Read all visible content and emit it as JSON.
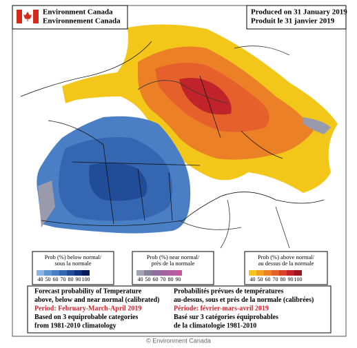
{
  "header": {
    "org_en": "Environment Canada",
    "org_fr": "Environnement Canada",
    "produced_en": "Produced on 31 January 2019",
    "produced_fr": "Produit le 31 janvier 2019"
  },
  "legends": [
    {
      "title": [
        "Prob (%) below normal/",
        "sous la normale"
      ],
      "swatches": [
        {
          "value": 40,
          "color": "#8db5e2"
        },
        {
          "value": 50,
          "color": "#5f96d4"
        },
        {
          "value": 60,
          "color": "#4a7fc6"
        },
        {
          "value": 70,
          "color": "#3566b1"
        },
        {
          "value": 80,
          "color": "#214c98"
        },
        {
          "value": 90,
          "color": "#12337a"
        },
        {
          "value": 100,
          "color": "#061d5a"
        }
      ]
    },
    {
      "title": [
        "Prob (%) near normal/",
        "près de la normale"
      ],
      "swatches": [
        {
          "value": 40,
          "color": "#a3a3b4"
        },
        {
          "value": 50,
          "color": "#83839a"
        },
        {
          "value": 60,
          "color": "#8f709a"
        },
        {
          "value": 70,
          "color": "#a0659e"
        },
        {
          "value": 80,
          "color": "#b0609f"
        },
        {
          "value": 90,
          "color": "#c05aa0"
        }
      ]
    },
    {
      "title": [
        "Prob (%) above normal/",
        "au dessus de la normale"
      ],
      "swatches": [
        {
          "value": 40,
          "color": "#f3c61a"
        },
        {
          "value": 50,
          "color": "#f0a022"
        },
        {
          "value": 60,
          "color": "#ec8027"
        },
        {
          "value": 70,
          "color": "#e5602b"
        },
        {
          "value": 80,
          "color": "#d8412a"
        },
        {
          "value": 90,
          "color": "#c0242a"
        },
        {
          "value": 100,
          "color": "#9e1620"
        }
      ]
    }
  ],
  "notes": {
    "en": [
      "Forecast probability of Temperature",
      "above, below and near normal (calibrated)",
      "Period: February-March-April 2019",
      "Based on 3 equiprobable categories",
      "from 1981-2010 climatology"
    ],
    "fr": [
      "Probabilités prévues de températures",
      "au-dessus, sous et près de la normale (calibrées)",
      "Période: février-mars-avril 2019",
      "Basé sur 3 catégories équiprobables",
      "de la climatologie 1981-2010"
    ]
  },
  "credit": "© Environment Canada"
}
